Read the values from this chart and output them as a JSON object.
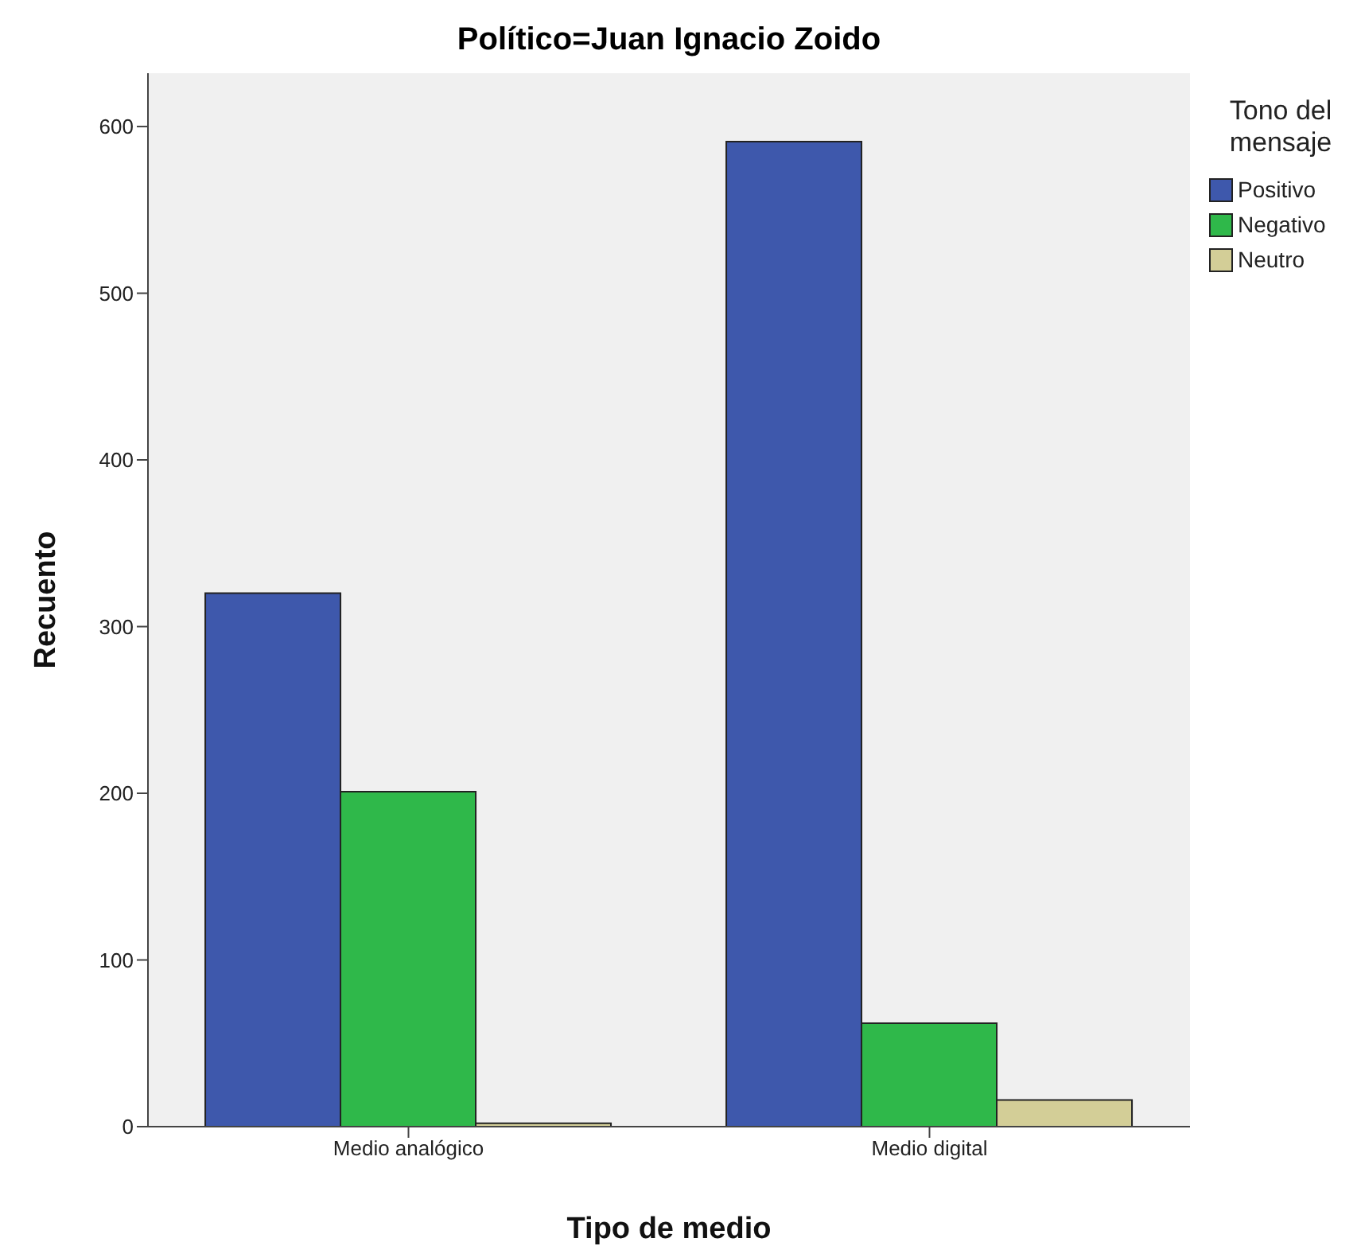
{
  "chart_data": {
    "type": "bar",
    "title": "Político=Juan Ignacio Zoido",
    "xlabel": "Tipo de medio",
    "ylabel": "Recuento",
    "legend_title": "Tono del mensaje",
    "categories": [
      "Medio analógico",
      "Medio digital"
    ],
    "series": [
      {
        "name": "Positivo",
        "color": "#3e58ac",
        "values": [
          320,
          591
        ]
      },
      {
        "name": "Negativo",
        "color": "#2fb84a",
        "values": [
          201,
          62
        ]
      },
      {
        "name": "Neutro",
        "color": "#d3ce97",
        "values": [
          2,
          16
        ]
      }
    ],
    "ylim": [
      0,
      632
    ],
    "yticks": [
      0,
      100,
      200,
      300,
      400,
      500,
      600
    ],
    "grid": false,
    "legend": "right"
  }
}
